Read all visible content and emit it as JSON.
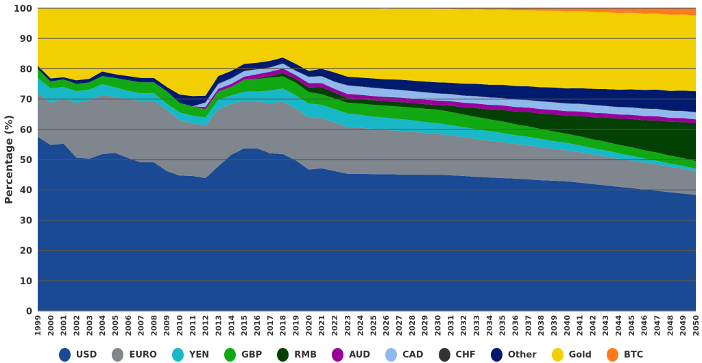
{
  "chart_data": {
    "type": "area",
    "stacked": true,
    "title": "",
    "xlabel": "",
    "ylabel": "Percentage (%)",
    "ylim": [
      0,
      100
    ],
    "yticks": [
      0,
      10,
      20,
      30,
      40,
      50,
      60,
      70,
      80,
      90,
      100
    ],
    "grid": true,
    "legend_position": "bottom",
    "x": [
      "1999",
      "2000",
      "2001",
      "2002",
      "2003",
      "2004",
      "2005",
      "2006",
      "2007",
      "2008",
      "2009",
      "2010",
      "2011",
      "2012",
      "2013",
      "2014",
      "2015",
      "2016",
      "2017",
      "2018",
      "2019",
      "2020",
      "2021",
      "2022",
      "2023",
      "2024",
      "2025",
      "2026",
      "2027",
      "2028",
      "2029",
      "2030",
      "2031",
      "2032",
      "2033",
      "2034",
      "2035",
      "2036",
      "2037",
      "2038",
      "2039",
      "2040",
      "2041",
      "2042",
      "2043",
      "2044",
      "2045",
      "2046",
      "2047",
      "2048",
      "2049",
      "2050"
    ],
    "series": [
      {
        "name": "USD",
        "color": "#1a4a94",
        "values": [
          57.5,
          54.8,
          55.3,
          50.6,
          50.3,
          51.8,
          52.2,
          50.5,
          49.1,
          49.1,
          46.2,
          44.7,
          44.6,
          43.9,
          47.8,
          51.6,
          53.7,
          53.7,
          52.1,
          51.8,
          49.7,
          46.7,
          47.1,
          46.2,
          45.3,
          45.3,
          45.2,
          45.2,
          45.1,
          45.1,
          45.0,
          45.0,
          44.8,
          44.6,
          44.3,
          44.1,
          43.9,
          43.7,
          43.5,
          43.2,
          43.0,
          42.8,
          42.4,
          41.9,
          41.5,
          41.0,
          40.6,
          40.1,
          39.7,
          39.2,
          38.8,
          38.3
        ]
      },
      {
        "name": "EURO",
        "color": "#7f868e",
        "values": [
          14.5,
          14.0,
          14.9,
          18.1,
          19.3,
          19.6,
          18.5,
          19.5,
          20.3,
          20.3,
          20.3,
          18.3,
          17.4,
          17.3,
          18.8,
          16.8,
          15.7,
          15.5,
          16.5,
          17.4,
          17.2,
          17.1,
          16.6,
          16.1,
          15.5,
          15.2,
          14.9,
          14.6,
          14.4,
          14.1,
          13.8,
          13.5,
          13.2,
          12.8,
          12.5,
          12.2,
          11.9,
          11.5,
          11.2,
          10.9,
          10.5,
          10.2,
          10.0,
          9.8,
          9.5,
          9.3,
          9.1,
          8.9,
          8.7,
          8.4,
          8.2,
          8.0
        ]
      },
      {
        "name": "YEN",
        "color": "#18b8c8",
        "values": [
          5.0,
          4.7,
          3.8,
          3.9,
          3.5,
          3.5,
          3.2,
          2.7,
          2.5,
          2.6,
          2.0,
          2.6,
          2.5,
          2.7,
          3.2,
          2.8,
          3.0,
          3.3,
          4.2,
          4.3,
          4.3,
          4.7,
          4.4,
          4.4,
          4.4,
          4.3,
          4.1,
          4.0,
          3.9,
          3.8,
          3.6,
          3.5,
          3.4,
          3.3,
          3.2,
          3.1,
          3.0,
          2.9,
          2.8,
          2.7,
          2.6,
          2.5,
          2.3,
          2.1,
          2.0,
          1.8,
          1.6,
          1.4,
          1.2,
          1.1,
          0.9,
          0.7
        ]
      },
      {
        "name": "GBP",
        "color": "#12a812",
        "values": [
          3.0,
          2.3,
          2.5,
          2.4,
          2.4,
          2.7,
          3.1,
          3.5,
          3.6,
          3.5,
          4.1,
          3.1,
          3.1,
          2.7,
          2.7,
          2.8,
          4.0,
          4.1,
          4.3,
          4.0,
          4.2,
          3.8,
          3.5,
          3.5,
          3.6,
          3.7,
          3.9,
          4.0,
          4.1,
          4.2,
          4.4,
          4.5,
          4.4,
          4.2,
          4.1,
          3.9,
          3.8,
          3.6,
          3.5,
          3.3,
          3.2,
          3.0,
          3.0,
          2.9,
          2.9,
          2.8,
          2.8,
          2.7,
          2.7,
          2.6,
          2.6,
          2.5
        ]
      },
      {
        "name": "RMB",
        "color": "#034003",
        "values": [
          0,
          0,
          0,
          0,
          0,
          0,
          0,
          0,
          0,
          0,
          0,
          0,
          0,
          0,
          0,
          0,
          0,
          0.2,
          0.5,
          1.1,
          1.2,
          1.5,
          2.3,
          1.9,
          1.5,
          1.5,
          1.5,
          1.5,
          1.5,
          1.5,
          1.5,
          1.5,
          2.0,
          2.4,
          2.9,
          3.3,
          3.8,
          4.2,
          4.7,
          5.1,
          5.6,
          6.0,
          6.7,
          7.3,
          8.0,
          8.6,
          9.3,
          9.9,
          10.6,
          11.2,
          11.9,
          12.5
        ]
      },
      {
        "name": "AUD",
        "color": "#990099",
        "values": [
          0,
          0,
          0,
          0,
          0,
          0,
          0,
          0,
          0,
          0,
          0,
          0,
          0,
          0.8,
          0.9,
          1.0,
          1.0,
          1.4,
          1.4,
          1.5,
          1.3,
          1.5,
          1.4,
          1.3,
          1.4,
          1.4,
          1.4,
          1.4,
          1.5,
          1.5,
          1.5,
          1.5,
          1.5,
          1.5,
          1.5,
          1.5,
          1.5,
          1.5,
          1.5,
          1.5,
          1.5,
          1.5,
          1.5,
          1.5,
          1.4,
          1.4,
          1.4,
          1.4,
          1.4,
          1.3,
          1.3,
          1.3
        ]
      },
      {
        "name": "CAD",
        "color": "#8fb8ec",
        "values": [
          0,
          0,
          0,
          0,
          0,
          0,
          0,
          0,
          0,
          0,
          0,
          0,
          0,
          1.4,
          1.6,
          1.8,
          1.8,
          1.6,
          1.4,
          1.6,
          1.4,
          2.0,
          2.2,
          2.3,
          2.8,
          2.7,
          2.7,
          2.6,
          2.5,
          2.4,
          2.4,
          2.3,
          2.3,
          2.3,
          2.4,
          2.4,
          2.4,
          2.4,
          2.4,
          2.5,
          2.5,
          2.5,
          2.5,
          2.5,
          2.4,
          2.4,
          2.4,
          2.4,
          2.4,
          2.3,
          2.3,
          2.3
        ]
      },
      {
        "name": "CHF",
        "color": "#333333",
        "values": [
          0,
          0,
          0,
          0,
          0,
          0,
          0,
          0,
          0,
          0,
          0,
          0,
          0,
          0.1,
          0.1,
          0.1,
          0.1,
          0.1,
          0.1,
          0.1,
          0.1,
          0.1,
          0.1,
          0.1,
          0.1,
          0.1,
          0.1,
          0.1,
          0.1,
          0.1,
          0.1,
          0.1,
          0.1,
          0.1,
          0.1,
          0.1,
          0.1,
          0.1,
          0.1,
          0.1,
          0.1,
          0.1,
          0.1,
          0.1,
          0.1,
          0.1,
          0.1,
          0.1,
          0.1,
          0.1,
          0.1,
          0.1
        ]
      },
      {
        "name": "Other",
        "color": "#001a6e",
        "values": [
          1.0,
          1.0,
          0.7,
          1.2,
          1.2,
          1.5,
          1.2,
          1.4,
          1.5,
          1.5,
          1.4,
          2.8,
          3.4,
          2.2,
          2.5,
          2.4,
          2.3,
          2.1,
          2.1,
          1.9,
          2.2,
          1.9,
          2.4,
          3.0,
          2.8,
          2.9,
          3.0,
          3.1,
          3.3,
          3.4,
          3.5,
          3.6,
          3.7,
          3.9,
          4.0,
          4.1,
          4.3,
          4.4,
          4.5,
          4.6,
          4.8,
          4.9,
          5.1,
          5.3,
          5.5,
          5.7,
          5.9,
          6.1,
          6.3,
          6.5,
          6.7,
          6.9
        ]
      },
      {
        "name": "Gold",
        "color": "#f2cf00",
        "values": [
          19.0,
          23.2,
          22.8,
          23.8,
          23.3,
          20.9,
          21.8,
          22.4,
          23.0,
          23.0,
          26.0,
          28.5,
          29.0,
          28.9,
          22.4,
          20.7,
          18.4,
          18.0,
          17.4,
          16.3,
          18.4,
          20.7,
          20.0,
          21.2,
          22.6,
          22.8,
          23.1,
          23.3,
          23.6,
          23.8,
          24.1,
          24.3,
          24.4,
          24.5,
          24.7,
          24.8,
          24.9,
          25.0,
          25.1,
          25.3,
          25.4,
          25.5,
          25.5,
          25.4,
          25.4,
          25.3,
          25.3,
          25.2,
          25.2,
          25.1,
          25.1,
          25.0
        ]
      },
      {
        "name": "BTC",
        "color": "#ff7a1a",
        "values": [
          0,
          0,
          0,
          0,
          0,
          0,
          0,
          0,
          0,
          0,
          0,
          0,
          0,
          0,
          0,
          0,
          0,
          0,
          0,
          0,
          0,
          0,
          0,
          0,
          0,
          0,
          0,
          0,
          0,
          0.1,
          0.1,
          0.2,
          0.3,
          0.4,
          0.4,
          0.5,
          0.6,
          0.7,
          0.8,
          0.8,
          0.9,
          1.0,
          1.1,
          1.3,
          1.4,
          1.6,
          1.7,
          1.8,
          2.0,
          2.1,
          2.3,
          2.4
        ]
      }
    ]
  }
}
